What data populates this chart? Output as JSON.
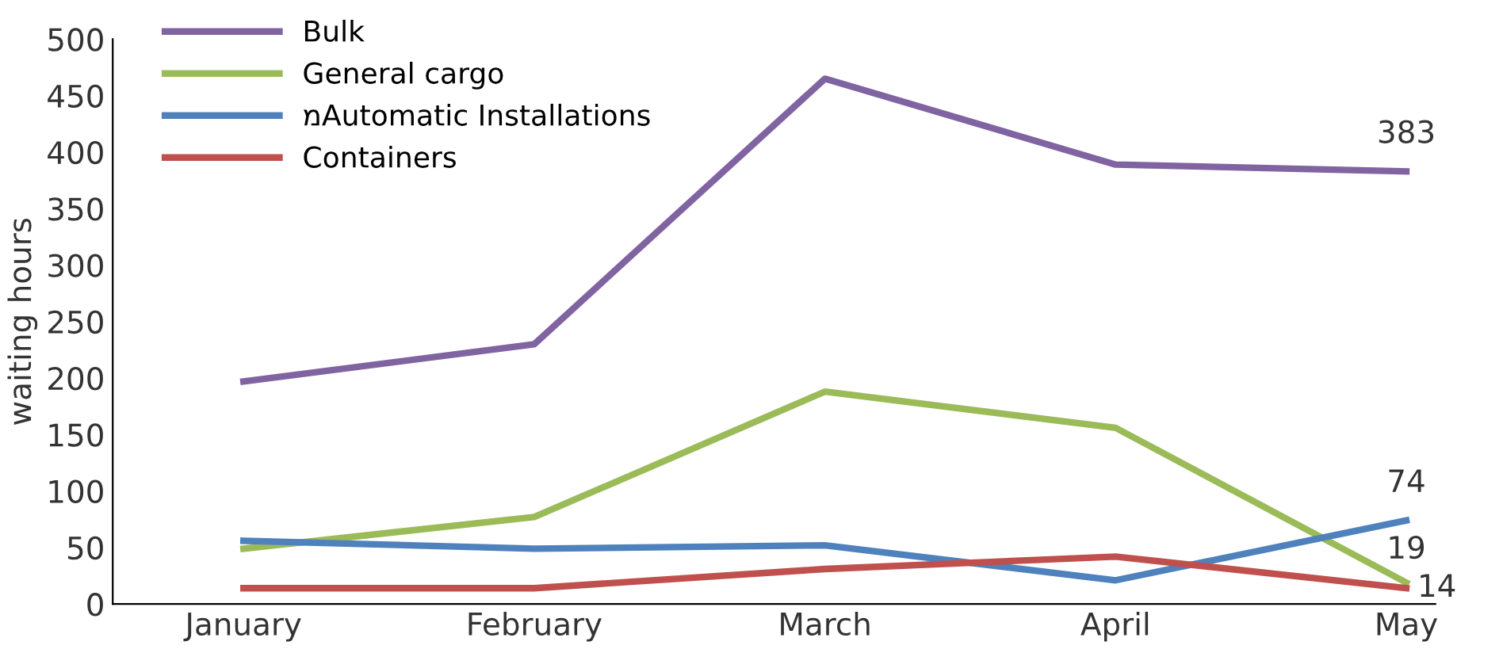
{
  "chart_data": {
    "type": "line",
    "ylabel": "waiting hours",
    "categories": [
      "January",
      "February",
      "March",
      "April",
      "May"
    ],
    "series": [
      {
        "name": "Bulk",
        "color": "#8064a2",
        "values": [
          197,
          230,
          465,
          389,
          383
        ],
        "value_labels": [
          null,
          null,
          null,
          null,
          "383"
        ]
      },
      {
        "name": "General cargo",
        "color": "#9bbb59",
        "values": [
          49,
          77,
          188,
          156,
          19
        ],
        "value_labels": [
          null,
          null,
          null,
          null,
          "19"
        ]
      },
      {
        "name": "מAutomatic Installations",
        "color": "#4f81bd",
        "values": [
          56,
          49,
          52,
          21,
          74
        ],
        "value_labels": [
          null,
          null,
          null,
          null,
          "74"
        ]
      },
      {
        "name": "Containers",
        "color": "#c0504d",
        "values": [
          14,
          14,
          31,
          42,
          14
        ],
        "value_labels": [
          null,
          null,
          null,
          null,
          "14"
        ]
      }
    ],
    "ylim": [
      0,
      500
    ],
    "yticks": [
      0,
      50,
      100,
      150,
      200,
      250,
      300,
      350,
      400,
      450,
      500
    ],
    "grid": false,
    "legend": "top left",
    "marker": "none",
    "line_style": "solid"
  }
}
